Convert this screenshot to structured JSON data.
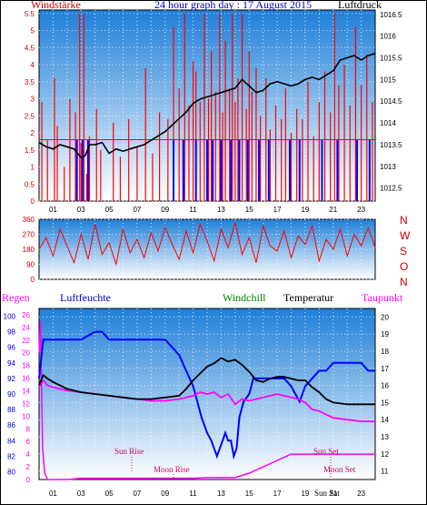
{
  "title": "24 hour graph day : 17 August 2015",
  "colors": {
    "plot_top": "#1f7fd8",
    "plot_bottom": "#ffffff",
    "wind": "#ff0000",
    "wind_below": "#0000ff",
    "pressure": "#000000",
    "humidity": "#0000ff",
    "temperature": "#000000",
    "dewpoint": "#ff00ff",
    "windchill": "#008000",
    "rain": "#ff00ff",
    "sun": "#cc0066",
    "frame": "#000000"
  },
  "x_hours": [
    "01",
    "03",
    "05",
    "07",
    "09",
    "11",
    "13",
    "15",
    "17",
    "19",
    "21",
    "23"
  ],
  "chart_data": [
    {
      "type": "line",
      "labels": {
        "left": "Windstärke",
        "right": "Luftdruck"
      },
      "y_left_ticks": [
        "0",
        "0.5",
        "1",
        "1.5",
        "2",
        "2.5",
        "3",
        "3.5",
        "4",
        "4.5",
        "5",
        "5.5"
      ],
      "y_right_ticks": [
        "1012.5",
        "1013",
        "1013.5",
        "1014",
        "1014.5",
        "1015",
        "1015.5",
        "1016",
        "1016.5"
      ],
      "ylim_left": [
        0,
        5.6
      ],
      "ylim_right": [
        1012.2,
        1016.6
      ],
      "xlim": [
        0,
        24
      ],
      "series": [
        {
          "name": "Luftdruck",
          "axis": "right",
          "x": [
            0,
            0.5,
            1,
            1.5,
            2,
            2.5,
            3,
            3.3,
            3.6,
            4,
            4.5,
            5,
            5.5,
            6,
            6.5,
            7,
            7.5,
            8,
            8.5,
            9,
            9.5,
            10,
            10.5,
            11,
            11.5,
            12,
            12.5,
            13,
            13.5,
            14,
            14.5,
            15,
            15.5,
            16,
            16.5,
            17,
            17.5,
            18,
            18.5,
            19,
            19.5,
            20,
            20.5,
            21,
            21.5,
            22,
            22.5,
            23,
            23.5,
            24
          ],
          "y": [
            1013.55,
            1013.45,
            1013.4,
            1013.5,
            1013.45,
            1013.4,
            1013.2,
            1013.25,
            1013.5,
            1013.5,
            1013.55,
            1013.3,
            1013.4,
            1013.35,
            1013.4,
            1013.45,
            1013.5,
            1013.6,
            1013.7,
            1013.8,
            1013.95,
            1014.1,
            1014.25,
            1014.45,
            1014.55,
            1014.6,
            1014.65,
            1014.7,
            1014.75,
            1014.8,
            1015.0,
            1014.85,
            1014.7,
            1014.75,
            1014.9,
            1014.95,
            1014.9,
            1014.85,
            1014.9,
            1015.0,
            1015.05,
            1015.0,
            1015.1,
            1015.2,
            1015.45,
            1015.5,
            1015.55,
            1015.45,
            1015.55,
            1015.6
          ]
        },
        {
          "name": "Windstärke",
          "axis": "left",
          "x": [
            0.2,
            0.6,
            1.1,
            1.3,
            1.8,
            2.2,
            2.6,
            2.9,
            3.0,
            3.2,
            3.4,
            3.6,
            4.1,
            4.4,
            5.3,
            5.8,
            6.4,
            7.0,
            7.6,
            8.1,
            8.6,
            9.2,
            9.6,
            10.0,
            10.4,
            10.7,
            11.0,
            11.2,
            11.5,
            11.8,
            12.1,
            12.3,
            12.6,
            12.9,
            13.1,
            13.3,
            13.6,
            13.8,
            14.0,
            14.2,
            14.5,
            14.8,
            15.0,
            15.2,
            15.5,
            15.8,
            16.2,
            16.5,
            16.9,
            17.3,
            17.6,
            18.0,
            18.4,
            18.8,
            19.2,
            19.6,
            20.0,
            20.4,
            20.8,
            21.1,
            21.4,
            21.8,
            22.2,
            22.6,
            23.0,
            23.4,
            23.8
          ],
          "y": [
            2.9,
            1.8,
            3.6,
            2.2,
            1.0,
            3.0,
            2.6,
            5.5,
            1.7,
            5.5,
            0.8,
            1.9,
            2.7,
            1.5,
            2.3,
            1.3,
            2.4,
            1.6,
            3.9,
            1.4,
            2.6,
            2.4,
            5.1,
            3.3,
            5.5,
            2.8,
            4.1,
            3.8,
            2.9,
            5.5,
            3.0,
            4.4,
            3.2,
            5.5,
            2.6,
            4.7,
            3.3,
            5.5,
            2.9,
            3.6,
            5.5,
            2.7,
            4.4,
            3.2,
            3.9,
            2.5,
            3.6,
            2.1,
            2.8,
            2.4,
            3.3,
            2.0,
            2.7,
            2.4,
            3.5,
            1.9,
            2.9,
            3.8,
            2.6,
            5.5,
            3.4,
            4.0,
            2.8,
            5.1,
            3.4,
            4.3,
            2.9
          ]
        }
      ]
    },
    {
      "type": "line",
      "labels": {
        "right": [
          "N",
          "W",
          "S",
          "O",
          "N"
        ]
      },
      "y_left_ticks": [
        "0",
        "90",
        "180",
        "270",
        "360"
      ],
      "ylim_left": [
        0,
        360
      ],
      "xlim": [
        0,
        24
      ],
      "series": [
        {
          "name": "Windrichtung",
          "axis": "left",
          "x": [
            0,
            0.5,
            1,
            1.5,
            2,
            2.5,
            3,
            3.5,
            4,
            4.5,
            5,
            5.5,
            6,
            6.5,
            7,
            7.5,
            8,
            8.5,
            9,
            9.5,
            10,
            10.5,
            11,
            11.5,
            12,
            12.5,
            13,
            13.5,
            14,
            14.5,
            15,
            15.5,
            16,
            16.5,
            17,
            17.5,
            18,
            18.5,
            19,
            19.5,
            20,
            20.5,
            21,
            21.5,
            22,
            22.5,
            23,
            23.5,
            24
          ],
          "y": [
            180,
            250,
            140,
            300,
            200,
            100,
            270,
            120,
            330,
            150,
            220,
            90,
            300,
            160,
            240,
            130,
            280,
            170,
            310,
            210,
            120,
            290,
            160,
            330,
            230,
            110,
            300,
            190,
            340,
            150,
            250,
            100,
            320,
            200,
            170,
            290,
            130,
            260,
            210,
            320,
            110,
            240,
            180,
            300,
            140,
            270,
            200,
            310,
            190
          ]
        }
      ]
    },
    {
      "type": "line",
      "labels": {
        "rain": "Regen",
        "humidity": "Luftfeuchte",
        "windchill": "Windchill",
        "temperature": "Temperatur",
        "dewpoint": "Taupunkt"
      },
      "y_rain_ticks": [
        "0",
        "2",
        "4",
        "6",
        "8",
        "10",
        "12",
        "14",
        "16",
        "18",
        "20",
        "22",
        "24",
        "26"
      ],
      "y_humidity_ticks": [
        "80",
        "82",
        "84",
        "86",
        "88",
        "90",
        "92",
        "94",
        "96",
        "98",
        "100"
      ],
      "y_temp_ticks": [
        "11",
        "12",
        "13",
        "14",
        "15",
        "16",
        "17",
        "18",
        "19",
        "20"
      ],
      "ylim_humidity": [
        79,
        101
      ],
      "ylim_temp": [
        10.5,
        20.5
      ],
      "xlim": [
        0,
        24
      ],
      "annotations": {
        "sun_rise": "Sun Rise",
        "moon_rise": "Moon Rise",
        "sun_set": "Sun Set",
        "moon_set": "Moon Set",
        "sun_sat": "Sun Sat"
      },
      "series": [
        {
          "name": "Luftfeuchte",
          "axis": "humidity",
          "x": [
            0,
            0.3,
            0.6,
            1,
            2,
            3,
            4,
            4.5,
            5,
            6,
            7,
            8,
            9,
            9.5,
            10,
            10.5,
            11,
            11.3,
            11.6,
            12,
            12.3,
            12.5,
            12.7,
            12.9,
            13.1,
            13.3,
            13.5,
            13.7,
            13.9,
            14.1,
            14.3,
            14.6,
            15,
            15.3,
            15.6,
            16,
            16.5,
            17,
            17.5,
            18,
            18.3,
            18.6,
            19,
            19.5,
            20,
            20.5,
            21,
            21.5,
            22,
            22.5,
            23,
            23.5,
            24
          ],
          "y": [
            92,
            97,
            97,
            97,
            97,
            97,
            98,
            98,
            97,
            97,
            97,
            97,
            97,
            96,
            95,
            93,
            91,
            89,
            87,
            85,
            84,
            83,
            82,
            83,
            84,
            85,
            84,
            84,
            82,
            83,
            87,
            89,
            90,
            92,
            92,
            92,
            92,
            92,
            92,
            91,
            90,
            89,
            91,
            92,
            93,
            93,
            94,
            94,
            94,
            94,
            94,
            93,
            93
          ]
        },
        {
          "name": "Temperatur",
          "axis": "temp",
          "x": [
            0,
            0.3,
            0.6,
            1,
            1.5,
            2,
            2.5,
            3,
            4,
            5,
            6,
            7,
            8,
            9,
            10,
            10.5,
            11,
            11.5,
            12,
            12.5,
            13,
            13.5,
            14,
            14.5,
            15,
            15.5,
            16,
            16.5,
            17,
            17.5,
            18,
            18.5,
            19,
            19.5,
            20,
            20.5,
            21,
            22,
            23,
            24
          ],
          "y": [
            16.0,
            16.6,
            16.4,
            16.2,
            16.0,
            15.8,
            15.7,
            15.6,
            15.5,
            15.4,
            15.3,
            15.2,
            15.2,
            15.3,
            15.4,
            15.8,
            16.3,
            16.7,
            17.1,
            17.3,
            17.6,
            17.4,
            17.5,
            17.2,
            16.8,
            16.3,
            16.2,
            16.4,
            16.5,
            16.5,
            16.4,
            16.3,
            16.3,
            15.9,
            15.6,
            15.2,
            15.0,
            14.9,
            14.9,
            14.9
          ]
        },
        {
          "name": "Taupunkt",
          "axis": "temp",
          "x": [
            0,
            0.3,
            0.6,
            1,
            1.5,
            2,
            3,
            4,
            5,
            6,
            7,
            8,
            9,
            10,
            10.5,
            11,
            11.5,
            12,
            12.5,
            13,
            13.5,
            14,
            14.5,
            15,
            15.5,
            16,
            16.5,
            17,
            17.5,
            18,
            18.5,
            19,
            19.5,
            20,
            20.5,
            21,
            22,
            23,
            24
          ],
          "y": [
            15.9,
            16.3,
            16.0,
            15.9,
            15.8,
            15.7,
            15.6,
            15.5,
            15.4,
            15.3,
            15.2,
            15.1,
            15.1,
            15.2,
            15.3,
            15.4,
            15.6,
            15.5,
            15.6,
            15.3,
            15.5,
            14.9,
            15.2,
            15.1,
            15.2,
            15.3,
            15.4,
            15.5,
            15.4,
            15.3,
            15.2,
            15.0,
            14.6,
            14.5,
            14.3,
            14.1,
            14.0,
            13.9,
            13.9
          ]
        },
        {
          "name": "Regen",
          "axis": "rain",
          "x": [
            0,
            0.1,
            0.25,
            0.4,
            0.6,
            1,
            2,
            3,
            4,
            5,
            6,
            7,
            8,
            9,
            10,
            11,
            12,
            13,
            14,
            15,
            16,
            17,
            17.5,
            18,
            19,
            20,
            21,
            22,
            23,
            24
          ],
          "y": [
            20,
            25,
            5,
            1,
            0,
            0,
            0,
            0.2,
            0.2,
            0.2,
            0.2,
            0.2,
            0.2,
            0.2,
            0.2,
            0.2,
            0.3,
            0.3,
            0.3,
            1,
            2,
            3,
            3.5,
            4,
            4,
            4,
            4,
            4,
            4,
            4
          ]
        }
      ]
    }
  ]
}
